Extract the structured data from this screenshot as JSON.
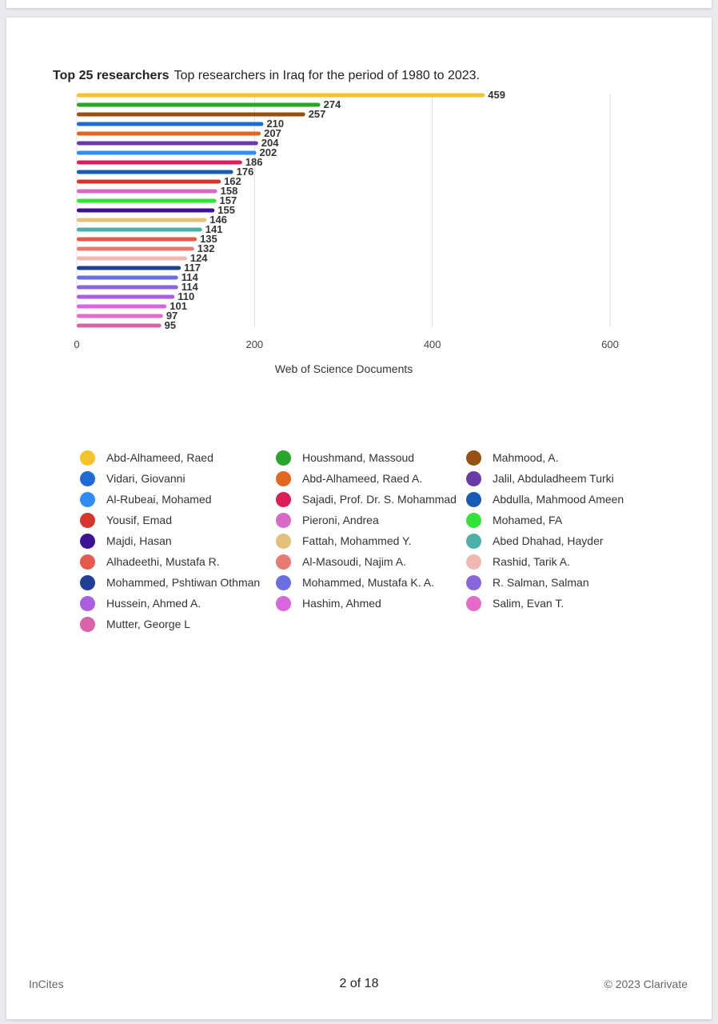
{
  "header": {
    "title_bold": "Top 25 researchers",
    "subtitle": "Top researchers in Iraq for the period of 1980 to 2023."
  },
  "chart_data": {
    "type": "bar",
    "orientation": "horizontal",
    "title": "Top 25 researchers",
    "xlabel": "Web of Science Documents",
    "ylabel": "",
    "xlim": [
      0,
      600
    ],
    "xticks": [
      0,
      200,
      400,
      600
    ],
    "grid": true,
    "legend_position": "bottom",
    "categories": [
      "Abd-Alhameed, Raed",
      "Houshmand, Massoud",
      "Mahmood, A.",
      "Vidari, Giovanni",
      "Abd-Alhameed, Raed A.",
      "Jalil, Abduladheem Turki",
      "Al-Rubeai, Mohamed",
      "Sajadi, Prof. Dr. S. Mohammad",
      "Abdulla, Mahmood Ameen",
      "Yousif, Emad",
      "Pieroni, Andrea",
      "Mohamed, FA",
      "Majdi, Hasan",
      "Fattah, Mohammed Y.",
      "Abed Dhahad, Hayder",
      "Alhadeethi, Mustafa R.",
      "Al-Masoudi, Najim A.",
      "Rashid, Tarik A.",
      "Mohammed, Pshtiwan Othman",
      "Mohammed, Mustafa K. A.",
      "R. Salman, Salman",
      "Hussein, Ahmed A.",
      "Hashim, Ahmed",
      "Salim, Evan T.",
      "Mutter, George L"
    ],
    "values": [
      459,
      274,
      257,
      210,
      207,
      204,
      202,
      186,
      176,
      162,
      158,
      157,
      155,
      146,
      141,
      135,
      132,
      124,
      117,
      114,
      114,
      110,
      101,
      97,
      95
    ],
    "colors": [
      "#f4c22b",
      "#2aa52a",
      "#96500f",
      "#1f6ad6",
      "#e2661e",
      "#6a3aa6",
      "#2f8cf0",
      "#dc1d58",
      "#1a5bb8",
      "#d9342b",
      "#d86ac6",
      "#33e33a",
      "#3c1194",
      "#e5c07b",
      "#4bb0a8",
      "#e65a4c",
      "#e87a74",
      "#f0b8b2",
      "#1e3f94",
      "#6b6ee0",
      "#8a66dd",
      "#a95fe0",
      "#d866e0",
      "#e46bc8",
      "#d962a8"
    ]
  },
  "footer": {
    "left": "InCites",
    "center": "2 of 18",
    "right": "© 2023 Clarivate"
  }
}
